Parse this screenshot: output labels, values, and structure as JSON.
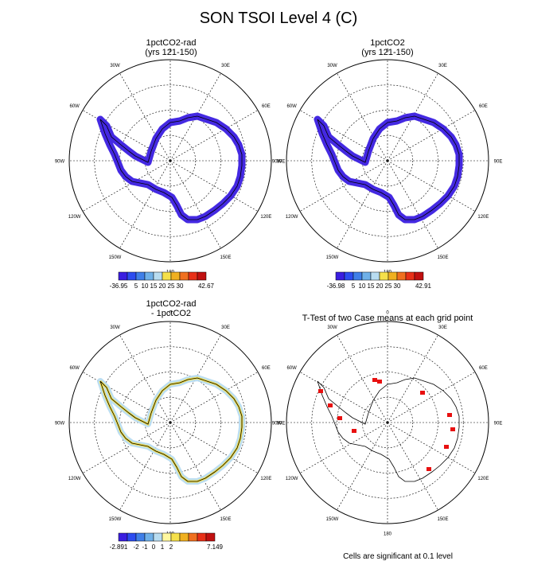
{
  "title": "SON TSOI Level 4 (C)",
  "panels": [
    {
      "title_line1": "1pctCO2-rad",
      "title_line2": "(yrs 121-150)",
      "colorbar_min": "-36.95",
      "colorbar_max": "42.67"
    },
    {
      "title_line1": "1pctCO2",
      "title_line2": "(yrs 121-150)",
      "colorbar_min": "-36.98",
      "colorbar_max": "42.91"
    },
    {
      "title_line1": "1pctCO2-rad",
      "title_line2": "- 1pctCO2",
      "colorbar_min": "-2.891",
      "colorbar_max": "7.149"
    },
    {
      "title_line1": "T-Test of two Case means at each grid point",
      "title_line2": ""
    }
  ],
  "longitude_labels": [
    "0",
    "30E",
    "60E",
    "90E",
    "120E",
    "150E",
    "180",
    "150W",
    "120W",
    "90W",
    "60W",
    "30W"
  ],
  "colorbar_ticks_abs": [
    "5",
    "10",
    "15",
    "20",
    "25",
    "30"
  ],
  "colorbar_ticks_diff": [
    "-2",
    "-1",
    "0",
    "1",
    "2"
  ],
  "colors": {
    "abs_scale": [
      "#3a1ee0",
      "#2c4cf0",
      "#3f7fe8",
      "#6fb0e8",
      "#b8dcf0",
      "#f5e04a",
      "#f0b020",
      "#f07020",
      "#e83018",
      "#c01010"
    ],
    "diff_scale": [
      "#3a1ee0",
      "#2c4cf0",
      "#3f7fe8",
      "#6fb0e8",
      "#b8dcf0",
      "#fff8a0",
      "#f5e04a",
      "#f0b020",
      "#f07020",
      "#e83018",
      "#c01010"
    ],
    "significance": "#e81010",
    "field_main": "#3a1ee0"
  },
  "footnote": "Cells are significant at 0.1 level"
}
